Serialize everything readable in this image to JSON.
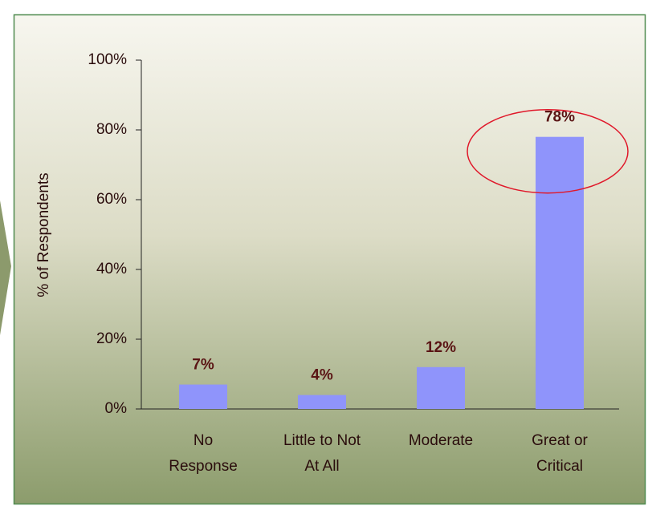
{
  "chart_data": {
    "type": "bar",
    "y_label": "% of Respondents",
    "categories": [
      [
        "No",
        "Response"
      ],
      [
        "Little to Not",
        "At All"
      ],
      [
        "Moderate"
      ],
      [
        "Great or",
        "Critical"
      ]
    ],
    "values": [
      7,
      4,
      12,
      78
    ],
    "value_labels": [
      "7%",
      "4%",
      "12%",
      "78%"
    ],
    "color": "#8f94fb",
    "highlight_color": "#e0182a",
    "ylim": [
      0,
      100
    ],
    "yticks": [
      {
        "value": 0,
        "label": "0%"
      },
      {
        "value": 20,
        "label": "20%"
      },
      {
        "value": 40,
        "label": "40%"
      },
      {
        "value": 60,
        "label": "60%"
      },
      {
        "value": 80,
        "label": "80%"
      },
      {
        "value": 100,
        "label": "100%"
      }
    ]
  }
}
